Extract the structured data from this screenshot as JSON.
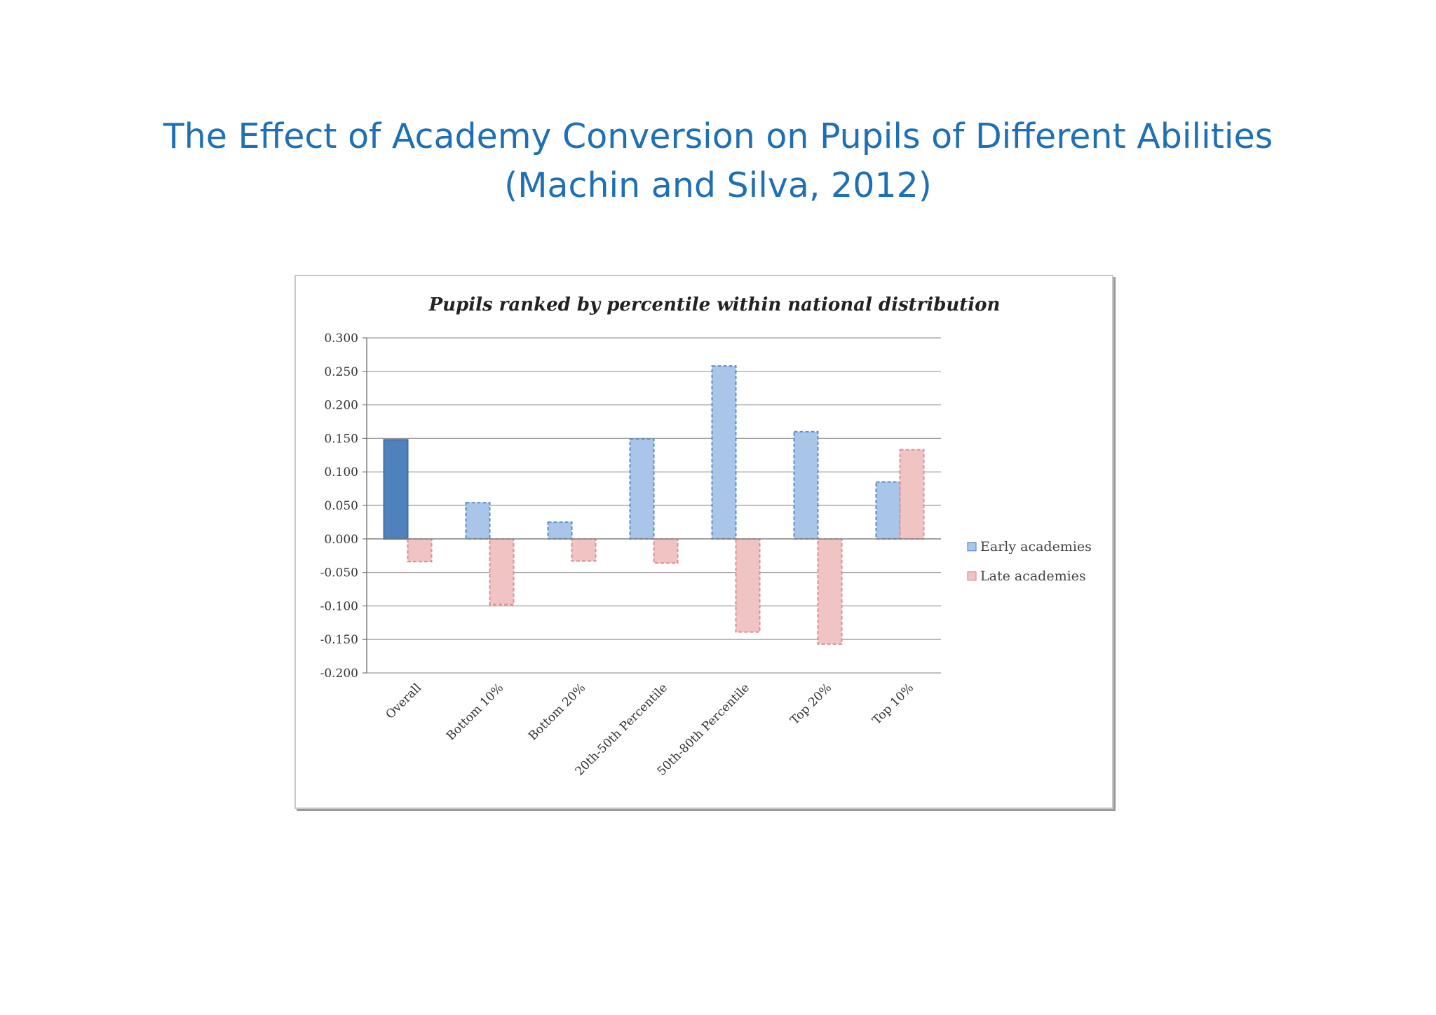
{
  "slide": {
    "title_line1": "The Effect of Academy Conversion on Pupils of Different Abilities",
    "title_line2": "(Machin and Silva, 2012)"
  },
  "chart_data": {
    "type": "bar",
    "title": "Pupils ranked by percentile within national distribution",
    "xlabel": "",
    "ylabel": "",
    "categories": [
      "Overall",
      "Bottom 10%",
      "Bottom 20%",
      "20th-50th Percentile",
      "50th-80th Percentile",
      "Top 20%",
      "Top 10%"
    ],
    "series": [
      {
        "name": "Early academies",
        "values": [
          0.148,
          0.054,
          0.025,
          0.149,
          0.258,
          0.16,
          0.085
        ],
        "color": "#a9c6e8",
        "highlight_color": "#4f81bd"
      },
      {
        "name": "Late academies",
        "values": [
          -0.034,
          -0.098,
          -0.033,
          -0.036,
          -0.139,
          -0.157,
          0.133
        ],
        "color": "#f1c4c4"
      }
    ],
    "ylim": [
      -0.2,
      0.3
    ],
    "yticks": [
      "0.300",
      "0.250",
      "0.200",
      "0.150",
      "0.100",
      "0.050",
      "0.000",
      "-0.050",
      "-0.100",
      "-0.150",
      "-0.200"
    ],
    "grid": true,
    "legend": "right",
    "note": "Overall early-academies bar is solid; all other bars have dashed outlines"
  }
}
